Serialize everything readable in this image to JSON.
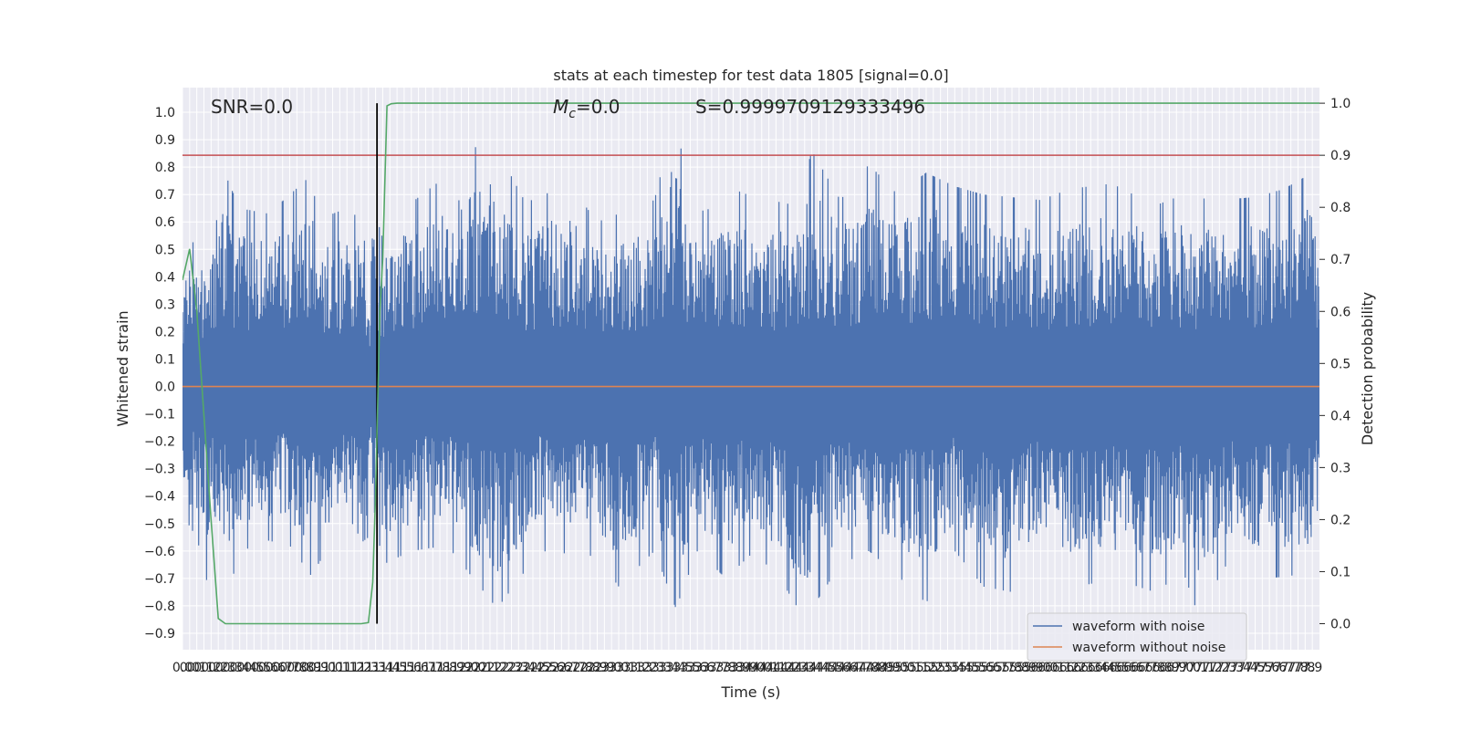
{
  "chart_data": {
    "type": "line",
    "title": "stats at each timestep for test data 1805 [signal=0.0]",
    "xlabel": "Time (s)",
    "ylabel": "Whitened strain",
    "y2label": "Detection probability",
    "xlim": [
      0.0,
      7.95
    ],
    "ylim": [
      -0.96,
      1.09
    ],
    "y2lim": [
      -0.05,
      1.03
    ],
    "x_ticks": [
      0.0,
      0.05,
      0.1,
      0.15,
      0.2,
      0.25,
      0.3,
      0.35,
      0.4,
      0.45,
      0.5,
      0.55,
      0.6,
      0.65,
      0.7,
      0.75,
      0.8,
      0.85,
      0.9,
      0.95,
      1.0,
      1.05,
      1.1,
      1.15,
      1.2,
      1.25,
      1.3,
      1.35,
      1.4,
      1.45,
      1.5,
      1.55,
      1.6,
      1.65,
      1.7,
      1.75,
      1.8,
      1.85,
      1.9,
      1.95,
      2.0,
      2.05,
      2.1,
      2.15,
      2.2,
      2.25,
      2.3,
      2.35,
      2.4,
      2.45,
      2.5,
      2.55,
      2.6,
      2.65,
      2.7,
      2.75,
      2.8,
      2.85,
      2.9,
      2.95,
      3.0,
      3.05,
      3.1,
      3.15,
      3.2,
      3.25,
      3.3,
      3.35,
      3.4,
      3.45,
      3.5,
      3.55,
      3.6,
      3.65,
      3.7,
      3.75,
      3.8,
      3.85,
      3.9,
      3.95,
      4.0,
      4.05,
      4.1,
      4.15,
      4.2,
      4.25,
      4.3,
      4.35,
      4.4,
      4.45,
      4.5,
      4.55,
      4.6,
      4.65,
      4.7,
      4.75,
      4.8,
      4.85,
      4.9,
      4.95,
      5.0,
      5.05,
      5.1,
      5.15,
      5.2,
      5.25,
      5.3,
      5.35,
      5.4,
      5.45,
      5.5,
      5.55,
      5.6,
      5.65,
      5.7,
      5.75,
      5.8,
      5.85,
      5.9,
      5.95,
      6.0,
      6.05,
      6.1,
      6.15,
      6.2,
      6.25,
      6.3,
      6.35,
      6.4,
      6.45,
      6.5,
      6.55,
      6.6,
      6.65,
      6.7,
      6.75,
      6.8,
      6.85,
      6.9,
      6.95,
      7.0,
      7.05,
      7.1,
      7.15,
      7.2,
      7.25,
      7.3,
      7.35,
      7.4,
      7.45,
      7.5,
      7.55,
      7.6,
      7.65,
      7.7,
      7.75,
      7.8,
      7.85,
      7.9
    ],
    "x_tick_labels": [
      "0.0",
      "0.0",
      "0.1",
      "0.1",
      "0.2",
      "0.2",
      "0.3",
      "0.3",
      "0.4",
      "0.4",
      "0.5",
      "0.5",
      "0.6",
      "0.6",
      "0.7",
      "0.7",
      "0.8",
      "0.8",
      "0.9",
      "0.9",
      "1.0",
      "1.0",
      "1.1",
      "1.1",
      "1.2",
      "1.2",
      "1.3",
      "1.3",
      "1.4",
      "1.4",
      "1.5",
      "1.5",
      "1.6",
      "1.6",
      "1.7",
      "1.7",
      "1.8",
      "1.8",
      "1.9",
      "1.9",
      "2.0",
      "2.0",
      "2.1",
      "2.1",
      "2.2",
      "2.2",
      "2.3",
      "2.3",
      "2.4",
      "2.4",
      "2.5",
      "2.5",
      "2.6",
      "2.6",
      "2.7",
      "2.7",
      "2.8",
      "2.8",
      "2.9",
      "2.9",
      "3.0",
      "3.0",
      "3.1",
      "3.1",
      "3.2",
      "3.2",
      "3.3",
      "3.3",
      "3.4",
      "3.4",
      "3.5",
      "3.5",
      "3.6",
      "3.6",
      "3.7",
      "3.7",
      "3.8",
      "3.8",
      "3.9",
      "3.9",
      "4.0",
      "4.0",
      "4.1",
      "4.1",
      "4.2",
      "4.2",
      "4.3",
      "4.3",
      "4.4",
      "4.4",
      "4.5",
      "4.5",
      "4.6",
      "4.6",
      "4.7",
      "4.7",
      "4.8",
      "4.8",
      "4.9",
      "4.9",
      "5.0",
      "5.0",
      "5.1",
      "5.1",
      "5.2",
      "5.2",
      "5.3",
      "5.3",
      "5.4",
      "5.4",
      "5.5",
      "5.5",
      "5.6",
      "5.6",
      "5.7",
      "5.7",
      "5.8",
      "5.8",
      "5.9",
      "5.9",
      "6.0",
      "6.0",
      "6.1",
      "6.1",
      "6.2",
      "6.2",
      "6.3",
      "6.3",
      "6.4",
      "6.4",
      "6.5",
      "6.5",
      "6.6",
      "6.6",
      "6.7",
      "6.7",
      "6.8",
      "6.8",
      "6.9",
      "6.9",
      "7.0",
      "7.0",
      "7.1",
      "7.1",
      "7.2",
      "7.2",
      "7.3",
      "7.3",
      "7.4",
      "7.4",
      "7.5",
      "7.5",
      "7.6",
      "7.6",
      "7.7",
      "7.7",
      "7.8",
      "7.8",
      "7.9"
    ],
    "y_ticks": [
      -0.9,
      -0.8,
      -0.7,
      -0.6,
      -0.5,
      -0.4,
      -0.3,
      -0.2,
      -0.1,
      0.0,
      0.1,
      0.2,
      0.3,
      0.4,
      0.5,
      0.6,
      0.7,
      0.8,
      0.9,
      1.0
    ],
    "y_tick_labels": [
      "−0.9",
      "−0.8",
      "−0.7",
      "−0.6",
      "−0.5",
      "−0.4",
      "−0.3",
      "−0.2",
      "−0.1",
      "0.0",
      "0.1",
      "0.2",
      "0.3",
      "0.4",
      "0.5",
      "0.6",
      "0.7",
      "0.8",
      "0.9",
      "1.0"
    ],
    "y2_ticks": [
      0.0,
      0.1,
      0.2,
      0.3,
      0.4,
      0.5,
      0.6,
      0.7,
      0.8,
      0.9,
      1.0
    ],
    "y2_tick_labels": [
      "0.0",
      "0.1",
      "0.2",
      "0.3",
      "0.4",
      "0.5",
      "0.6",
      "0.7",
      "0.8",
      "0.9",
      "1.0"
    ],
    "grid": true,
    "legend_position": "lower-right",
    "series": [
      {
        "name": "waveform with noise",
        "axis": "left",
        "color": "#4c72b0",
        "render": "dense-noise",
        "upper_envelope": {
          "x": [
            0.0,
            0.1,
            0.15,
            0.27,
            0.4,
            0.6,
            0.9,
            0.95,
            1.1,
            1.25,
            1.3,
            1.33,
            1.4,
            1.5,
            1.85,
            2.14,
            2.4,
            2.7,
            2.9,
            3.3,
            3.45,
            3.55,
            3.7,
            3.8,
            4.0,
            4.3,
            4.4,
            4.6,
            4.8,
            5.0,
            5.2,
            5.4,
            5.6,
            5.8,
            6.0,
            6.2,
            6.5,
            6.8,
            7.0,
            7.2,
            7.5,
            7.7,
            7.9,
            7.95
          ],
          "y": [
            0.46,
            0.55,
            0.5,
            0.81,
            0.65,
            0.63,
            0.77,
            0.61,
            0.64,
            0.62,
            0.42,
            0.66,
            0.54,
            0.63,
            0.77,
            0.92,
            0.67,
            0.74,
            0.6,
            0.68,
            1.0,
            0.63,
            0.65,
            0.73,
            0.69,
            0.66,
            0.86,
            0.68,
            0.81,
            0.7,
            0.78,
            0.73,
            0.7,
            0.69,
            0.68,
            0.72,
            0.74,
            0.66,
            0.7,
            0.68,
            0.69,
            0.72,
            0.78,
            0.52
          ]
        },
        "lower_envelope": {
          "x": [
            0.0,
            0.1,
            0.17,
            0.2,
            0.35,
            0.5,
            0.75,
            0.9,
            1.1,
            1.2,
            1.25,
            1.3,
            1.33,
            1.4,
            1.6,
            1.85,
            2.2,
            2.5,
            2.9,
            3.05,
            3.3,
            3.45,
            3.6,
            3.8,
            4.0,
            4.2,
            4.35,
            4.6,
            4.8,
            5.0,
            5.2,
            5.4,
            5.6,
            5.8,
            6.0,
            6.2,
            6.5,
            6.8,
            7.0,
            7.1,
            7.3,
            7.6,
            7.9,
            7.95
          ],
          "y": [
            -0.47,
            -0.55,
            -0.71,
            -0.55,
            -0.69,
            -0.55,
            -0.58,
            -0.69,
            -0.52,
            -0.5,
            -0.57,
            -0.55,
            -0.42,
            -0.65,
            -0.6,
            -0.58,
            -0.81,
            -0.6,
            -0.62,
            -0.73,
            -0.6,
            -0.81,
            -0.6,
            -0.7,
            -0.6,
            -0.72,
            -0.85,
            -0.65,
            -0.6,
            -0.69,
            -0.79,
            -0.6,
            -0.73,
            -0.75,
            -0.62,
            -0.74,
            -0.7,
            -0.75,
            -0.68,
            -0.83,
            -0.65,
            -0.7,
            -0.68,
            -0.47
          ]
        }
      },
      {
        "name": "waveform without noise",
        "axis": "left",
        "color": "#dd8452",
        "x": [
          0.0,
          7.95
        ],
        "y": [
          0.0,
          0.0
        ]
      },
      {
        "axis": "right",
        "color": "#55a868",
        "x": [
          0.0,
          0.05,
          0.1,
          0.15,
          0.2,
          0.25,
          0.3,
          0.35,
          0.4,
          0.5,
          0.8,
          1.0,
          1.2,
          1.25,
          1.3,
          1.33,
          1.35,
          1.38,
          1.4,
          1.43,
          1.46,
          1.5,
          1.6,
          2.0,
          3.0,
          4.0,
          5.0,
          6.0,
          7.0,
          7.95
        ],
        "y": [
          0.66,
          0.72,
          0.6,
          0.4,
          0.2,
          0.01,
          0.0,
          0.0,
          0.0,
          0.0,
          0.0,
          0.0,
          0.0,
          0.0,
          0.002,
          0.08,
          0.25,
          0.6,
          0.7,
          0.995,
          0.999,
          1.0,
          1.0,
          1.0,
          1.0,
          1.0,
          1.0,
          1.0,
          1.0,
          1.0
        ]
      }
    ],
    "threshold_line": {
      "axis": "right",
      "color": "#c44e52",
      "y": 0.9
    },
    "vertical_line": {
      "axis": "right",
      "color": "#000000",
      "x": 1.36,
      "y_from": 0.0,
      "y_to": 1.0
    },
    "annotations": [
      {
        "text": "SNR=0.0"
      },
      {
        "text": "M_c=0.0",
        "math_main": "M",
        "math_sub": "c",
        "math_rest": "=0.0"
      },
      {
        "text": "S=0.9999709129333496"
      }
    ]
  }
}
